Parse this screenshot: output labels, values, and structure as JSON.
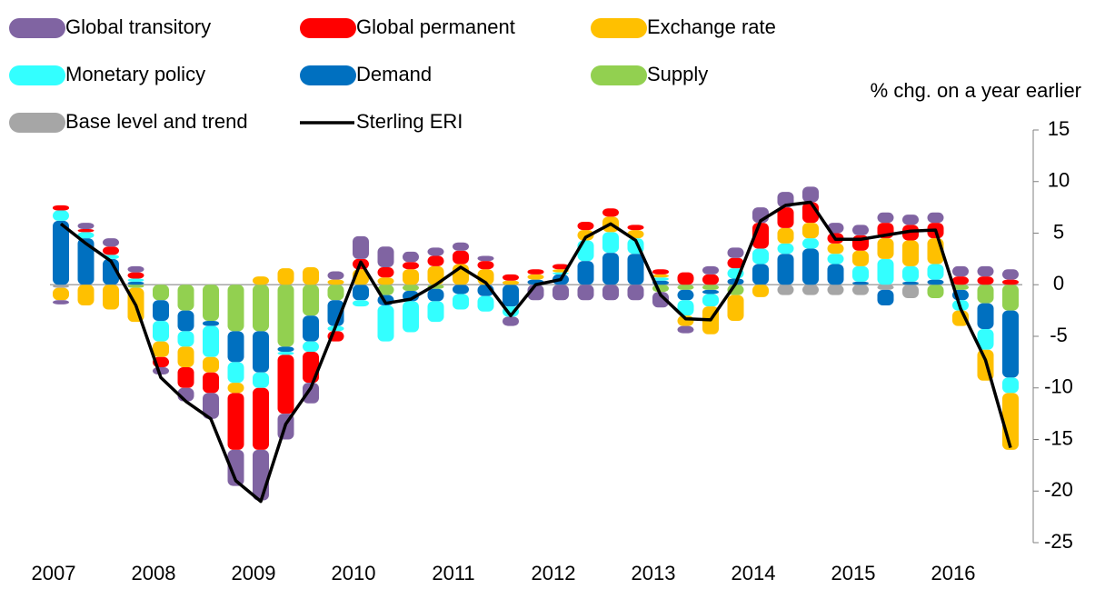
{
  "chart_data": {
    "type": "stacked-bar-line",
    "y_axis_label": "% chg. on a year earlier",
    "categories": [
      "2007",
      null,
      null,
      null,
      "2008",
      null,
      null,
      null,
      "2009",
      null,
      null,
      null,
      "2010",
      null,
      null,
      null,
      "2011",
      null,
      null,
      null,
      "2012",
      null,
      null,
      null,
      "2013",
      null,
      null,
      null,
      "2014",
      null,
      null,
      null,
      "2015",
      null,
      null,
      null,
      "2016",
      null,
      null
    ],
    "series": [
      {
        "name": "Global transitory",
        "color": "#8064a2",
        "values": [
          -0.4,
          0.6,
          0.8,
          0.6,
          -0.7,
          -1.3,
          -2.5,
          -3.5,
          -4.9,
          -2.5,
          -2,
          0.8,
          2.2,
          2,
          1,
          0.8,
          0.8,
          0.5,
          -0.9,
          -1.5,
          -1.5,
          -1.5,
          -1.5,
          -1.5,
          -1.5,
          -0.7,
          0.8,
          1,
          1.5,
          1.5,
          1.5,
          1,
          1,
          1,
          1,
          1,
          1,
          1,
          1
        ]
      },
      {
        "name": "Global permanent",
        "color": "#ff0000",
        "values": [
          0.5,
          0.3,
          0.8,
          0.6,
          -1,
          -2,
          -2,
          -5.5,
          -6,
          -5.7,
          -3,
          -1,
          1,
          1,
          0.7,
          1,
          1.3,
          0.8,
          0.6,
          0.5,
          0.5,
          0.8,
          0.8,
          0.5,
          0.5,
          1.2,
          1,
          1,
          2.5,
          2,
          2,
          1,
          1.5,
          1.5,
          1.5,
          1.5,
          0.8,
          0.8,
          0.5
        ]
      },
      {
        "name": "Exchange rate",
        "color": "#ffc000",
        "values": [
          -1.2,
          -2,
          -2.4,
          -3.3,
          -1.5,
          -2,
          -1.5,
          -1,
          0.8,
          1.6,
          1.7,
          0.5,
          1.5,
          0.7,
          1.5,
          1.8,
          2,
          1.5,
          0.4,
          0.5,
          0.3,
          1,
          1.5,
          0.8,
          0.3,
          -1,
          -2.7,
          -2.5,
          -1.2,
          1.5,
          1.5,
          1,
          1.5,
          2,
          2.5,
          2.5,
          -1.5,
          -3,
          -5.5
        ]
      },
      {
        "name": "Monetary policy",
        "color": "#33ffff",
        "values": [
          1,
          0.6,
          0.4,
          0.3,
          -2,
          -1.5,
          -3,
          -2,
          -1.5,
          -0.3,
          -1,
          -0.5,
          -0.6,
          -3.5,
          -3,
          -2,
          -1.5,
          -1.5,
          -1,
          0,
          0.2,
          2,
          2,
          1.5,
          0.3,
          -1.5,
          -1.2,
          1,
          1.5,
          1,
          1,
          1,
          1.5,
          2.5,
          1.5,
          1.5,
          -1,
          -2,
          -1.5
        ]
      },
      {
        "name": "Demand",
        "color": "#0070c0",
        "values": [
          6.2,
          4.5,
          2.5,
          0.3,
          -2,
          -2,
          -0.5,
          -3,
          -4,
          -0.5,
          -2.5,
          -2.5,
          -1.5,
          -1,
          -1,
          -1.2,
          -0.9,
          -1.1,
          -2.1,
          0.5,
          1,
          2.3,
          3.1,
          3,
          0.4,
          -1,
          -0.4,
          0.6,
          2,
          3,
          3.5,
          2,
          0.3,
          -1.5,
          0.3,
          0.5,
          -1,
          -2.5,
          -6.5
        ]
      },
      {
        "name": "Supply",
        "color": "#92d050",
        "values": [
          0,
          0,
          0,
          -0.3,
          -1.5,
          -2.5,
          -3.5,
          -4.5,
          -4.5,
          -6,
          -3,
          -1.5,
          0,
          -1,
          -0.6,
          -0.4,
          0,
          0,
          0,
          0,
          0,
          0,
          0,
          0,
          -0.7,
          -0.5,
          -0.5,
          -1,
          0,
          0,
          0,
          0,
          0,
          0,
          0,
          -1.3,
          -0.5,
          -1.8,
          -2.5
        ]
      },
      {
        "name": "Base level and trend",
        "color": "#a6a6a6",
        "values": [
          -0.3,
          0,
          0,
          0,
          0,
          0,
          0,
          0,
          0,
          0,
          0,
          0,
          0,
          0,
          0,
          0,
          0,
          0,
          0,
          0,
          0,
          0,
          0,
          0,
          0,
          0,
          0,
          0,
          0,
          -1,
          -1,
          -1,
          -1,
          -0.5,
          -1.3,
          0,
          0,
          0,
          0
        ]
      },
      {
        "name": "Sterling ERI",
        "type": "line",
        "color": "#000000",
        "values": [
          5.9,
          4,
          2.3,
          -2,
          -9,
          -11.3,
          -13,
          -19,
          -21,
          -13.5,
          -10,
          -4,
          2.2,
          -1.8,
          -1.4,
          0,
          1.7,
          0.2,
          -3,
          0,
          0.5,
          4.6,
          5.9,
          4.3,
          -1,
          -3.3,
          -3.4,
          0.1,
          6.2,
          7.7,
          8,
          4.4,
          4.4,
          4.8,
          5.2,
          5.3,
          -2.3,
          -7.3,
          -15.8
        ]
      }
    ],
    "ylim": [
      -25,
      15
    ],
    "yticks": [
      -25,
      -20,
      -15,
      -10,
      -5,
      0,
      5,
      10,
      15
    ]
  }
}
